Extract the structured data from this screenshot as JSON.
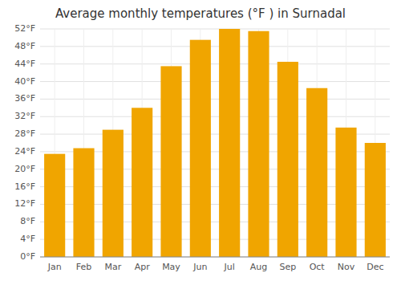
{
  "chart_data": {
    "type": "bar",
    "title": "Average monthly temperatures (°F ) in Surnadal",
    "categories": [
      "Jan",
      "Feb",
      "Mar",
      "Apr",
      "May",
      "Jun",
      "Jul",
      "Aug",
      "Sep",
      "Oct",
      "Nov",
      "Dec"
    ],
    "values": [
      23.5,
      24.8,
      29.0,
      34.0,
      43.5,
      49.5,
      52.0,
      51.5,
      44.5,
      38.5,
      29.5,
      26.0
    ],
    "color": "#F0A500",
    "ylim": [
      0,
      52
    ],
    "yticks": [
      {
        "value": 0,
        "label": "0°F"
      },
      {
        "value": 4,
        "label": "4°F"
      },
      {
        "value": 8,
        "label": "8°F"
      },
      {
        "value": 12,
        "label": "12°F"
      },
      {
        "value": 16,
        "label": "16°F"
      },
      {
        "value": 20,
        "label": "20°F"
      },
      {
        "value": 24,
        "label": "24°F"
      },
      {
        "value": 28,
        "label": "28°F"
      },
      {
        "value": 32,
        "label": "32°F"
      },
      {
        "value": 36,
        "label": "36°F"
      },
      {
        "value": 40,
        "label": "40°F"
      },
      {
        "value": 44,
        "label": "44°F"
      },
      {
        "value": 48,
        "label": "48°F"
      },
      {
        "value": 52,
        "label": "52°F"
      }
    ],
    "grid": true
  }
}
